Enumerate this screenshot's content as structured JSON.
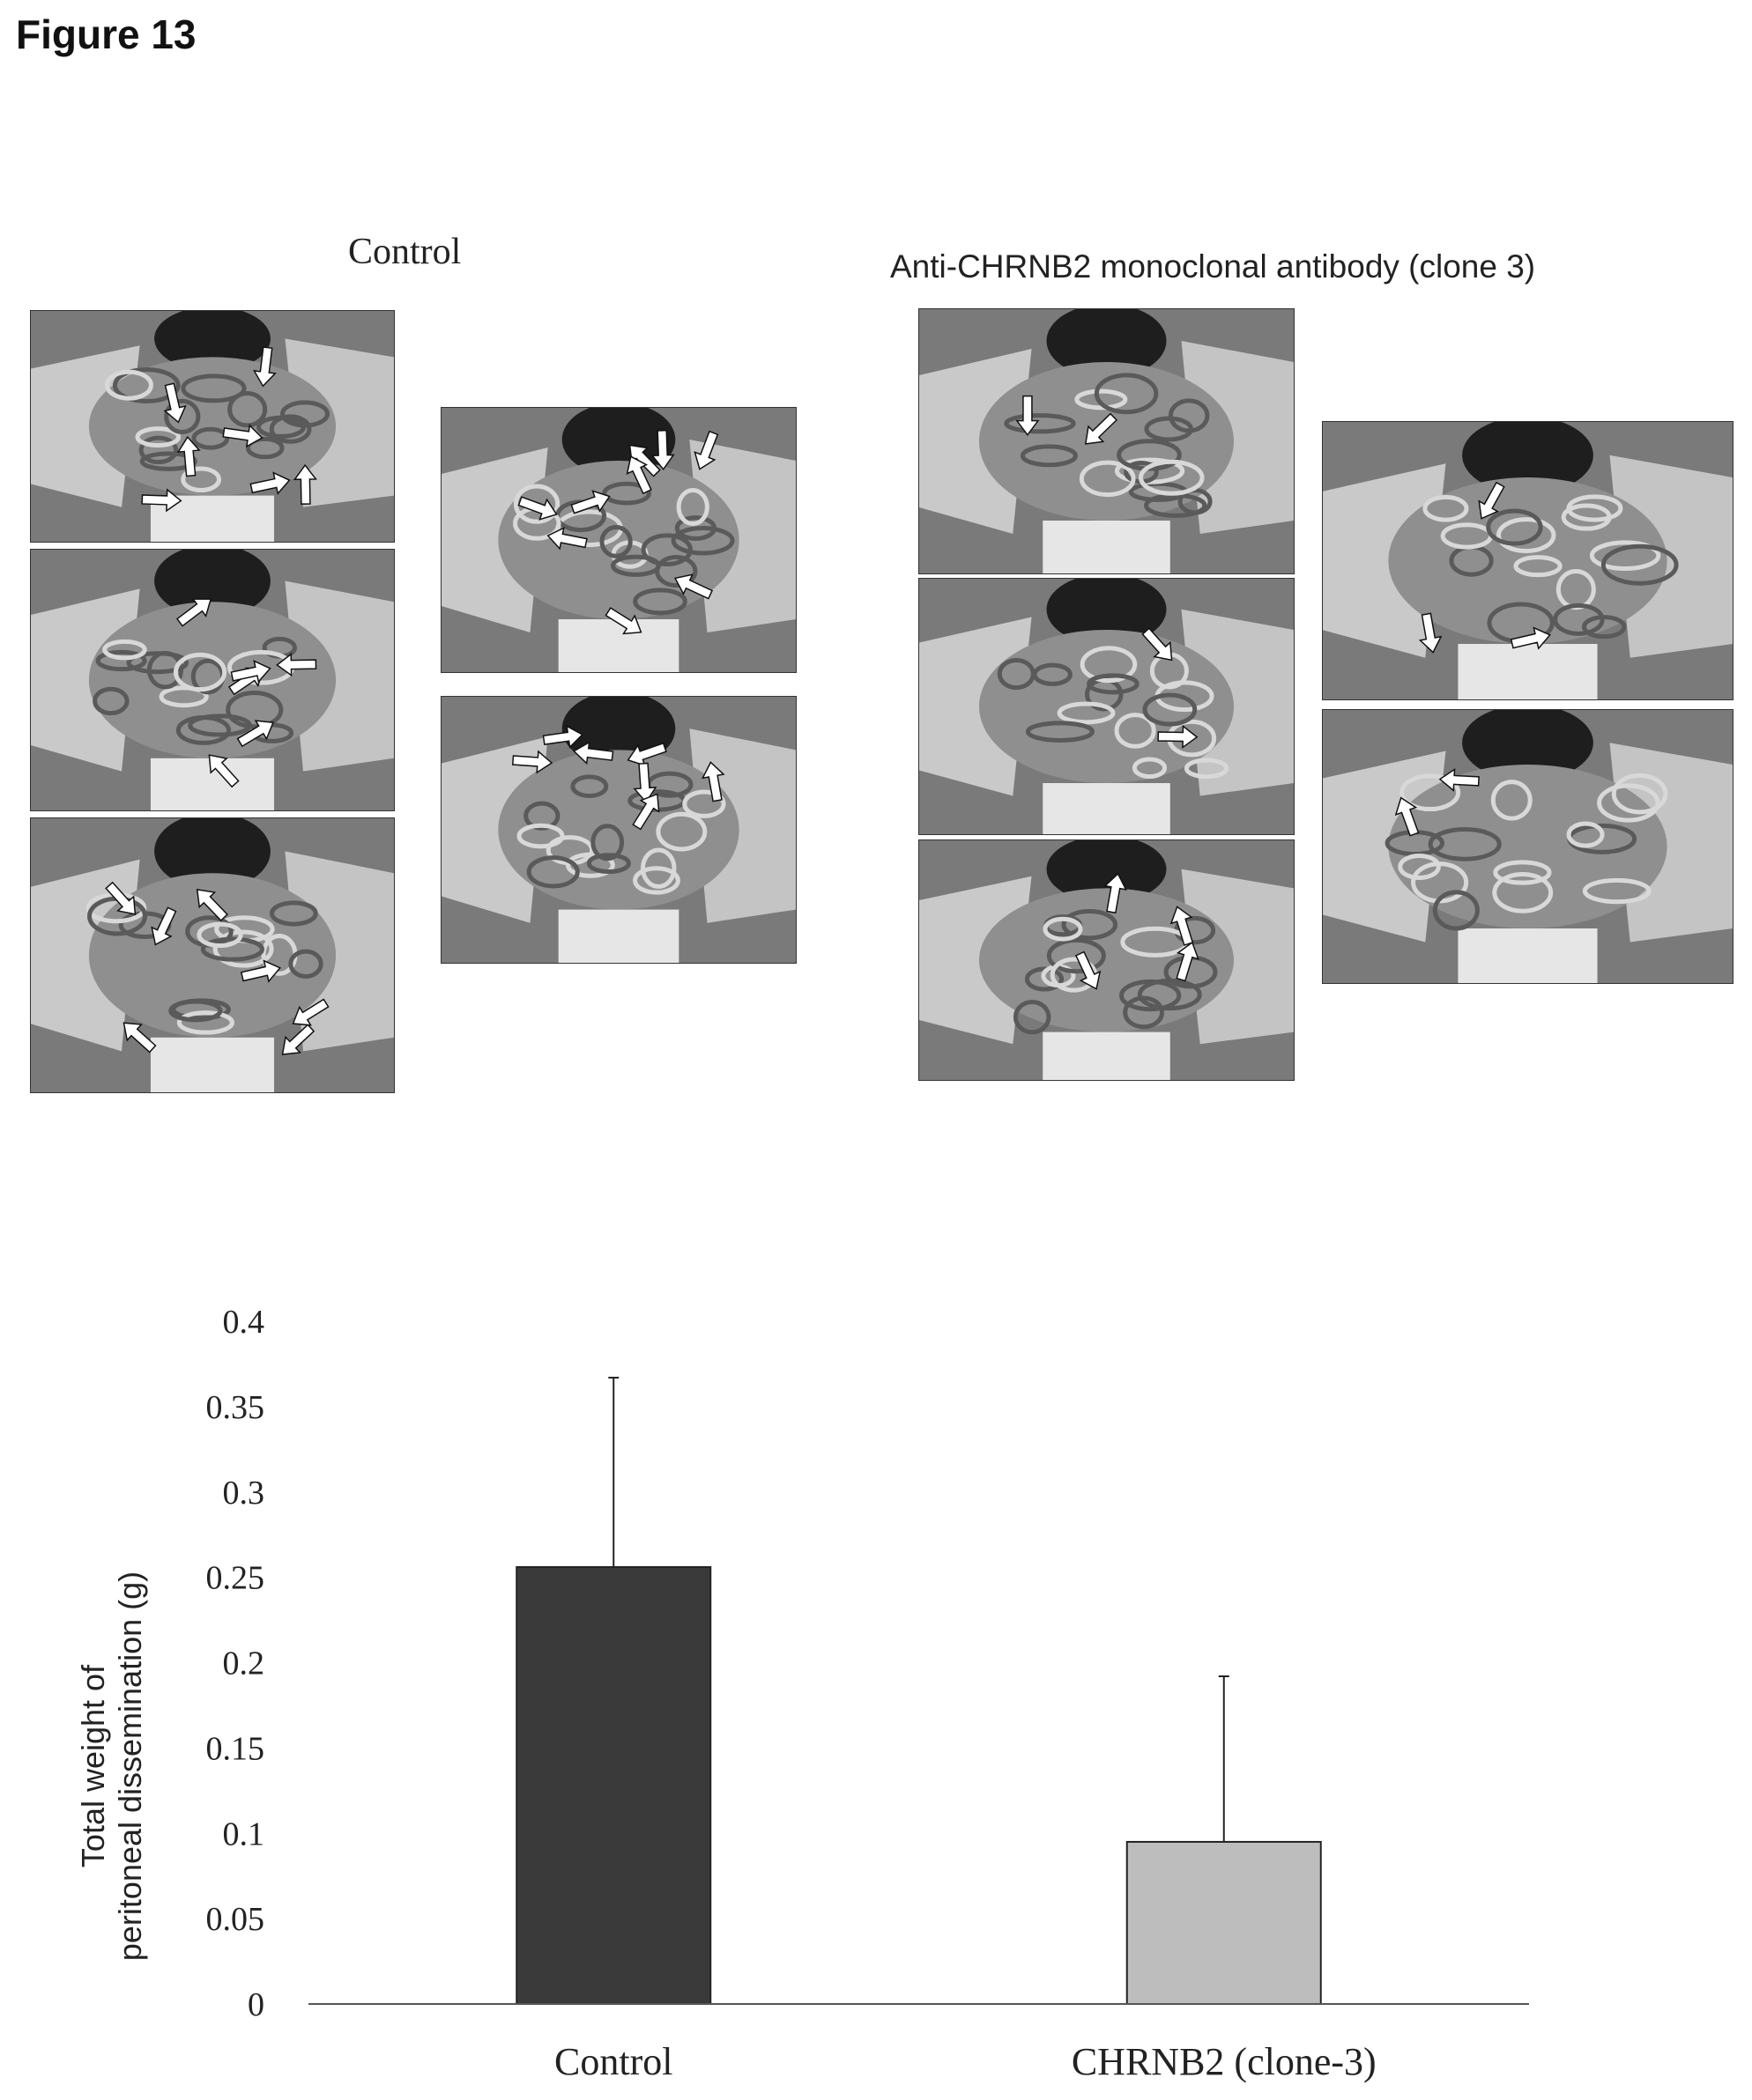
{
  "figure_title": "Figure 13",
  "groups": {
    "control_label": "Control",
    "antibody_label": "Anti-CHRNB2 monoclonal antibody (clone 3)"
  },
  "photos": {
    "control": [
      {
        "name": "control-photo-1",
        "arrows": 7
      },
      {
        "name": "control-photo-2",
        "arrows": 6
      },
      {
        "name": "control-photo-3",
        "arrows": 7
      },
      {
        "name": "control-photo-4",
        "arrows": 9
      },
      {
        "name": "control-photo-5",
        "arrows": 7
      }
    ],
    "antibody": [
      {
        "name": "antibody-photo-1",
        "arrows": 2
      },
      {
        "name": "antibody-photo-2",
        "arrows": 2
      },
      {
        "name": "antibody-photo-3",
        "arrows": 4
      },
      {
        "name": "antibody-photo-4",
        "arrows": 3
      },
      {
        "name": "antibody-photo-5",
        "arrows": 2
      }
    ]
  },
  "chart_data": {
    "type": "bar",
    "categories": [
      "Control",
      "CHRNB2 (clone-3)"
    ],
    "values": [
      0.256,
      0.095
    ],
    "error_upper": [
      0.111,
      0.097
    ],
    "colors": [
      "#3a3a3a",
      "#bdbdbd"
    ],
    "ylabel_line1": "Total weight of",
    "ylabel_line2": "peritoneal dissemination (g)",
    "ylim": [
      0,
      0.4
    ],
    "yticks": [
      "0",
      "0.05",
      "0.1",
      "0.15",
      "0.2",
      "0.25",
      "0.3",
      "0.35",
      "0.4"
    ],
    "grid": false
  }
}
